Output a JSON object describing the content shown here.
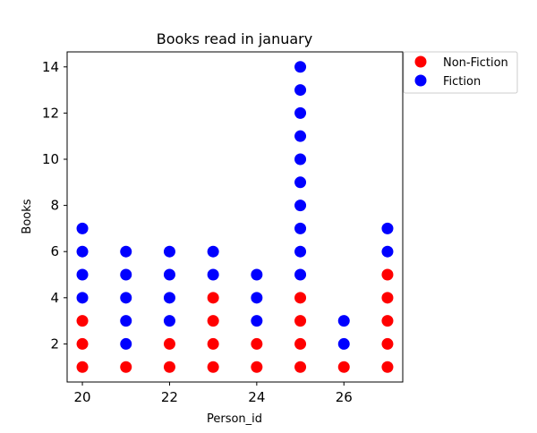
{
  "chart_data": {
    "type": "scatter",
    "title": "Books read in january",
    "xlabel": "Person_id",
    "ylabel": "Books",
    "xlim": [
      19.65,
      27.35
    ],
    "ylim": [
      0.35,
      14.65
    ],
    "xticks": [
      20,
      22,
      24,
      26
    ],
    "yticks": [
      2,
      4,
      6,
      8,
      10,
      12,
      14
    ],
    "legend_position": "upper-right-outside",
    "series": [
      {
        "name": "Non-Fiction",
        "color": "#ff0000",
        "points": [
          [
            20,
            1
          ],
          [
            20,
            2
          ],
          [
            20,
            3
          ],
          [
            21,
            1
          ],
          [
            22,
            1
          ],
          [
            22,
            2
          ],
          [
            23,
            1
          ],
          [
            23,
            2
          ],
          [
            23,
            3
          ],
          [
            23,
            4
          ],
          [
            24,
            1
          ],
          [
            24,
            2
          ],
          [
            25,
            1
          ],
          [
            25,
            2
          ],
          [
            25,
            3
          ],
          [
            25,
            4
          ],
          [
            26,
            1
          ],
          [
            27,
            1
          ],
          [
            27,
            2
          ],
          [
            27,
            3
          ],
          [
            27,
            4
          ],
          [
            27,
            5
          ]
        ]
      },
      {
        "name": "Fiction",
        "color": "#0000ff",
        "points": [
          [
            20,
            4
          ],
          [
            20,
            5
          ],
          [
            20,
            6
          ],
          [
            20,
            7
          ],
          [
            21,
            2
          ],
          [
            21,
            3
          ],
          [
            21,
            4
          ],
          [
            21,
            5
          ],
          [
            21,
            6
          ],
          [
            22,
            3
          ],
          [
            22,
            4
          ],
          [
            22,
            5
          ],
          [
            22,
            6
          ],
          [
            23,
            5
          ],
          [
            23,
            6
          ],
          [
            24,
            3
          ],
          [
            24,
            4
          ],
          [
            24,
            5
          ],
          [
            25,
            5
          ],
          [
            25,
            6
          ],
          [
            25,
            7
          ],
          [
            25,
            8
          ],
          [
            25,
            9
          ],
          [
            25,
            10
          ],
          [
            25,
            11
          ],
          [
            25,
            12
          ],
          [
            25,
            13
          ],
          [
            25,
            14
          ],
          [
            26,
            2
          ],
          [
            26,
            3
          ],
          [
            27,
            6
          ],
          [
            27,
            7
          ]
        ]
      }
    ]
  }
}
